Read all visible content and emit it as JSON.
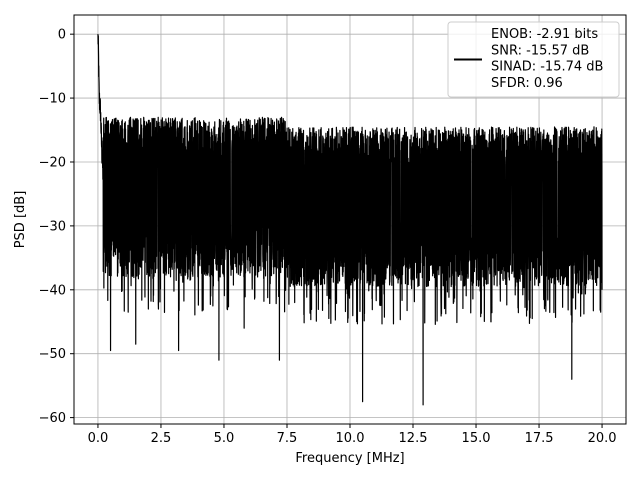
{
  "chart_data": {
    "type": "line",
    "title": "",
    "xlabel": "Frequency [MHz]",
    "ylabel": "PSD [dB]",
    "xlim": [
      -0.95,
      20.95
    ],
    "ylim": [
      -61,
      3
    ],
    "x_ticks": [
      0.0,
      2.5,
      5.0,
      7.5,
      10.0,
      12.5,
      15.0,
      17.5,
      20.0
    ],
    "x_tick_labels": [
      "0.0",
      "2.5",
      "5.0",
      "7.5",
      "10.0",
      "12.5",
      "15.0",
      "17.5",
      "20.0"
    ],
    "y_ticks": [
      0,
      -10,
      -20,
      -30,
      -40,
      -50,
      -60
    ],
    "y_tick_labels": [
      "0",
      "−10",
      "−20",
      "−30",
      "−40",
      "−50",
      "−60"
    ],
    "grid": true,
    "legend_position": "top-right",
    "legend_lines": [
      "ENOB: -2.91 bits",
      "SNR: -15.57 dB",
      "SINAD: -15.74 dB",
      "SFDR: 0.96"
    ],
    "series": [
      {
        "color": "#000000",
        "x_range": [
          0.0,
          20.0
        ],
        "peak_value": 0,
        "noise_floor_median": -24,
        "noise_band": [
          -38,
          -13
        ],
        "x": [
          0.0,
          0.02,
          0.05,
          0.1,
          0.15,
          0.2,
          0.3,
          0.4,
          0.5,
          1.2,
          1.5,
          2.0,
          2.4,
          3.2,
          4.8,
          5.8,
          7.2,
          10.5,
          12.9,
          18.8,
          20.0
        ],
        "y": [
          0,
          -3,
          -10,
          -12,
          -18,
          -22,
          -25,
          -30,
          -49.5,
          -43.5,
          -48.5,
          -43,
          -43,
          -49.5,
          -51,
          -46,
          -51,
          -57.5,
          -58,
          -54,
          -40
        ]
      }
    ]
  }
}
